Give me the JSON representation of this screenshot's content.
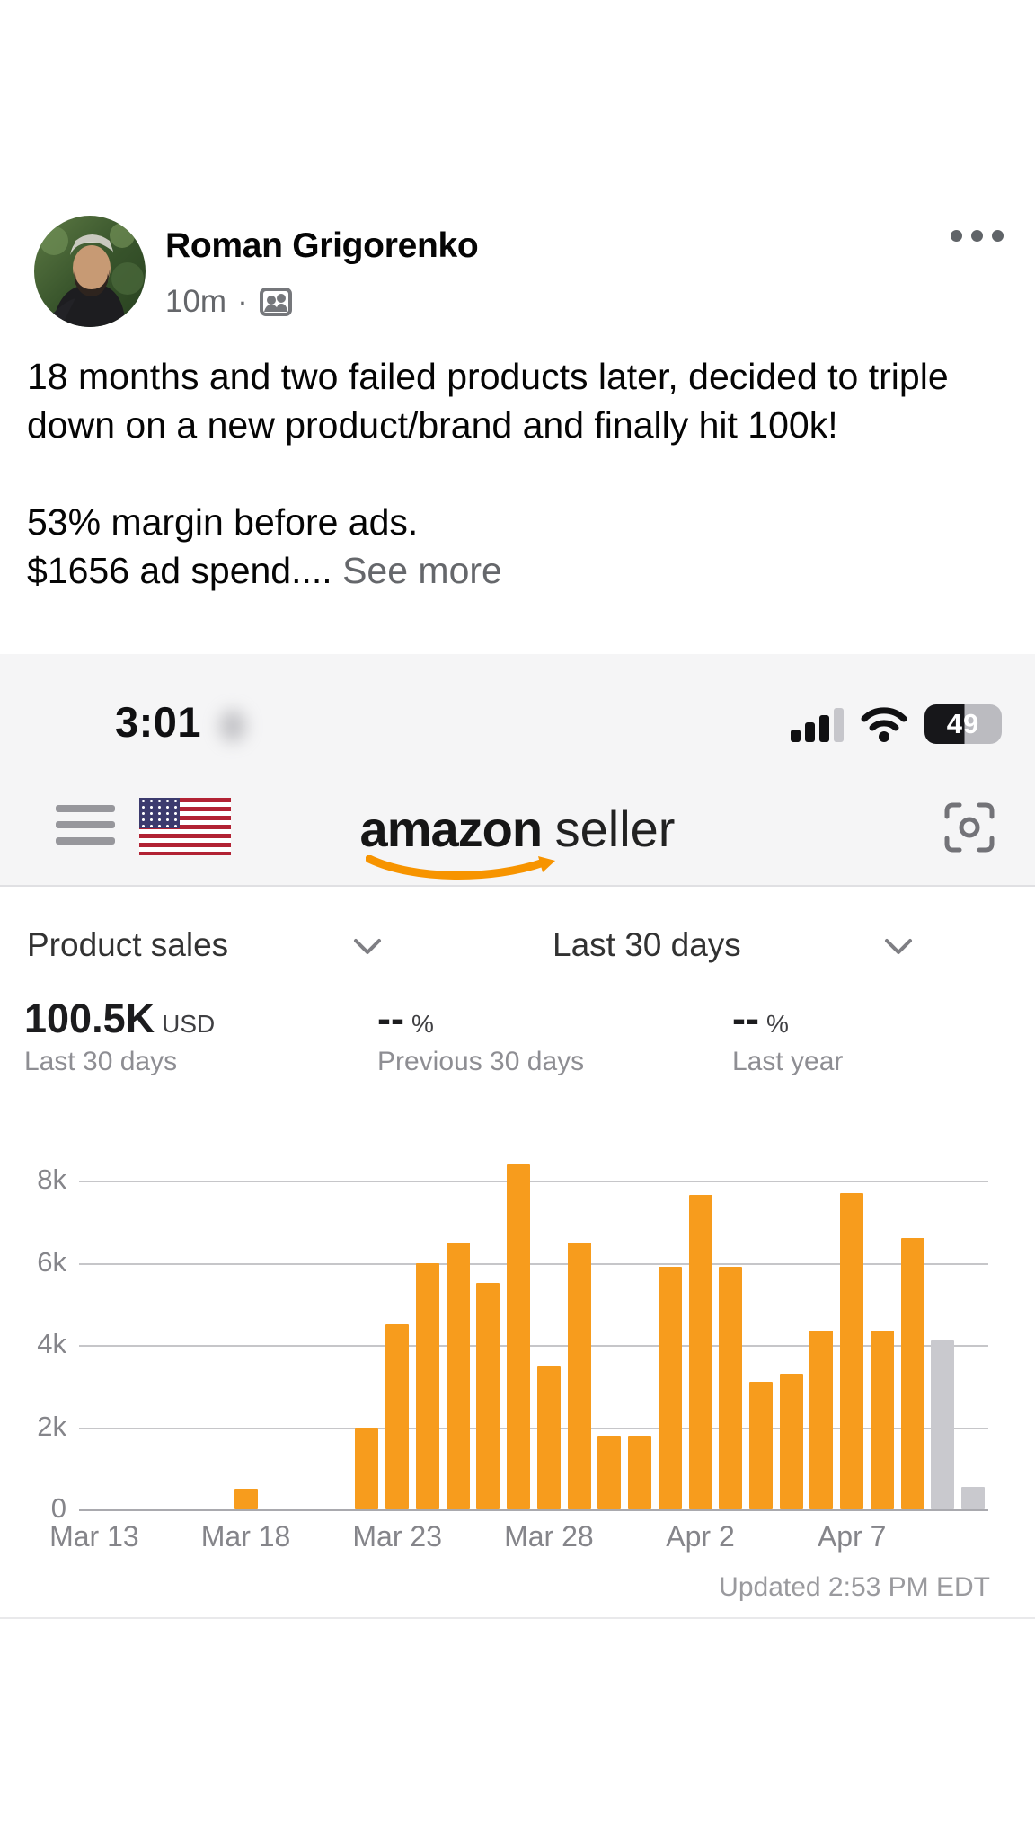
{
  "post": {
    "author": "Roman Grigorenko",
    "timestamp": "10m",
    "separator": "·",
    "menu_icon": "ellipsis-icon",
    "audience_icon": "group-icon",
    "body": {
      "para1": "18 months and two failed products later, decided to triple down on a new product/brand and finally hit 100k!",
      "para2_line1": "53% margin before ads.",
      "para2_line2": "$1656 ad spend....",
      "see_more": "See more"
    }
  },
  "screenshot": {
    "status_bar": {
      "time": "3:01",
      "battery_level": "49",
      "signal_icon": "cellular-signal-icon",
      "wifi_icon": "wifi-icon"
    },
    "header": {
      "brand": "amazon",
      "brand_suffix": "seller",
      "menu_icon": "hamburger-icon",
      "marketplace_icon": "us-flag-icon",
      "scan_icon": "scan-viewfinder-icon"
    },
    "filters": {
      "metric": "Product sales",
      "range": "Last 30 days"
    },
    "metrics": [
      {
        "value": "100.5K",
        "unit": "USD",
        "label": "Last 30 days"
      },
      {
        "value": "--",
        "unit": "%",
        "label": "Previous 30 days"
      },
      {
        "value": "--",
        "unit": "%",
        "label": "Last year"
      }
    ],
    "updated": "Updated 2:53 PM EDT"
  },
  "chart_data": {
    "type": "bar",
    "title": "Product sales, Last 30 days (USD)",
    "x": [
      "Mar 13",
      "Mar 14",
      "Mar 15",
      "Mar 16",
      "Mar 17",
      "Mar 18",
      "Mar 19",
      "Mar 20",
      "Mar 21",
      "Mar 22",
      "Mar 23",
      "Mar 24",
      "Mar 25",
      "Mar 26",
      "Mar 27",
      "Mar 28",
      "Mar 29",
      "Mar 30",
      "Mar 31",
      "Apr 1",
      "Apr 2",
      "Apr 3",
      "Apr 4",
      "Apr 5",
      "Apr 6",
      "Apr 7",
      "Apr 8",
      "Apr 9",
      "Apr 10",
      "Apr 11"
    ],
    "values": [
      0,
      0,
      0,
      0,
      0,
      500,
      0,
      0,
      0,
      2000,
      4500,
      6000,
      6500,
      5500,
      8400,
      3500,
      6500,
      1800,
      1800,
      5900,
      7650,
      5900,
      3100,
      3300,
      4350,
      7700,
      4350,
      6600,
      4100,
      550
    ],
    "incomplete_indices": [
      28,
      29
    ],
    "yticks": [
      0,
      2000,
      4000,
      6000,
      8000
    ],
    "ytick_labels": [
      "0",
      "2k",
      "4k",
      "6k",
      "8k"
    ],
    "xtick_indices": [
      0,
      5,
      10,
      15,
      20,
      25
    ],
    "ylim": [
      0,
      8600
    ],
    "grid": true,
    "legend": "none",
    "bar_color": "#F79C1D",
    "incomplete_color": "#C9C9CE",
    "total_label": "100.5K USD"
  }
}
